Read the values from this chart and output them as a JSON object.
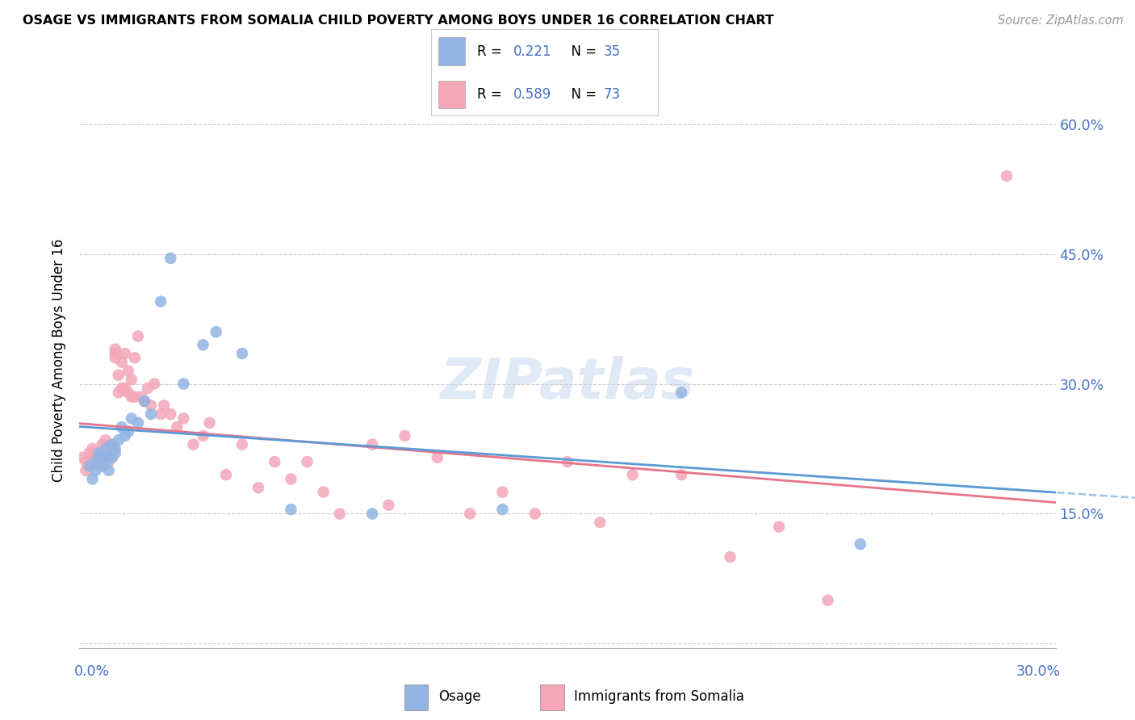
{
  "title": "OSAGE VS IMMIGRANTS FROM SOMALIA CHILD POVERTY AMONG BOYS UNDER 16 CORRELATION CHART",
  "source": "Source: ZipAtlas.com",
  "ylabel": "Child Poverty Among Boys Under 16",
  "yaxis_ticks": [
    0.0,
    0.15,
    0.3,
    0.45,
    0.6
  ],
  "yaxis_labels": [
    "",
    "15.0%",
    "30.0%",
    "45.0%",
    "60.0%"
  ],
  "xlim": [
    0.0,
    0.3
  ],
  "ylim": [
    -0.005,
    0.66
  ],
  "watermark": "ZIPatlas",
  "legend_v1": "0.221",
  "legend_nv1": "35",
  "legend_v2": "0.589",
  "legend_nv2": "73",
  "osage_color": "#92b4e3",
  "somalia_color": "#f4a7b9",
  "osage_line_color": "#5b9bd5",
  "somalia_line_color": "#e8748a",
  "dashed_line_color": "#9dc3e6",
  "text_blue": "#4472c4",
  "osage_x": [
    0.003,
    0.004,
    0.005,
    0.005,
    0.006,
    0.006,
    0.007,
    0.007,
    0.008,
    0.008,
    0.009,
    0.009,
    0.01,
    0.01,
    0.011,
    0.011,
    0.012,
    0.013,
    0.014,
    0.015,
    0.016,
    0.018,
    0.02,
    0.022,
    0.025,
    0.028,
    0.032,
    0.038,
    0.042,
    0.05,
    0.065,
    0.09,
    0.13,
    0.185,
    0.24
  ],
  "osage_y": [
    0.205,
    0.19,
    0.21,
    0.2,
    0.215,
    0.22,
    0.215,
    0.205,
    0.225,
    0.21,
    0.215,
    0.2,
    0.23,
    0.215,
    0.225,
    0.22,
    0.235,
    0.25,
    0.24,
    0.245,
    0.26,
    0.255,
    0.28,
    0.265,
    0.395,
    0.445,
    0.3,
    0.345,
    0.36,
    0.335,
    0.155,
    0.15,
    0.155,
    0.29,
    0.115
  ],
  "somalia_x": [
    0.001,
    0.002,
    0.002,
    0.003,
    0.003,
    0.004,
    0.004,
    0.005,
    0.005,
    0.006,
    0.006,
    0.007,
    0.007,
    0.008,
    0.008,
    0.008,
    0.009,
    0.009,
    0.01,
    0.01,
    0.01,
    0.011,
    0.011,
    0.011,
    0.012,
    0.012,
    0.013,
    0.013,
    0.014,
    0.014,
    0.015,
    0.015,
    0.016,
    0.016,
    0.017,
    0.017,
    0.018,
    0.019,
    0.02,
    0.021,
    0.022,
    0.023,
    0.025,
    0.026,
    0.028,
    0.03,
    0.032,
    0.035,
    0.038,
    0.04,
    0.045,
    0.05,
    0.055,
    0.06,
    0.065,
    0.07,
    0.075,
    0.08,
    0.09,
    0.095,
    0.1,
    0.11,
    0.12,
    0.13,
    0.14,
    0.15,
    0.16,
    0.17,
    0.185,
    0.2,
    0.215,
    0.23,
    0.285
  ],
  "somalia_y": [
    0.215,
    0.2,
    0.21,
    0.205,
    0.22,
    0.215,
    0.225,
    0.21,
    0.22,
    0.205,
    0.215,
    0.21,
    0.23,
    0.215,
    0.225,
    0.235,
    0.215,
    0.21,
    0.215,
    0.225,
    0.23,
    0.33,
    0.335,
    0.34,
    0.29,
    0.31,
    0.325,
    0.295,
    0.335,
    0.295,
    0.315,
    0.29,
    0.305,
    0.285,
    0.33,
    0.285,
    0.355,
    0.285,
    0.28,
    0.295,
    0.275,
    0.3,
    0.265,
    0.275,
    0.265,
    0.25,
    0.26,
    0.23,
    0.24,
    0.255,
    0.195,
    0.23,
    0.18,
    0.21,
    0.19,
    0.21,
    0.175,
    0.15,
    0.23,
    0.16,
    0.24,
    0.215,
    0.15,
    0.175,
    0.15,
    0.21,
    0.14,
    0.195,
    0.195,
    0.1,
    0.135,
    0.05,
    0.54
  ]
}
